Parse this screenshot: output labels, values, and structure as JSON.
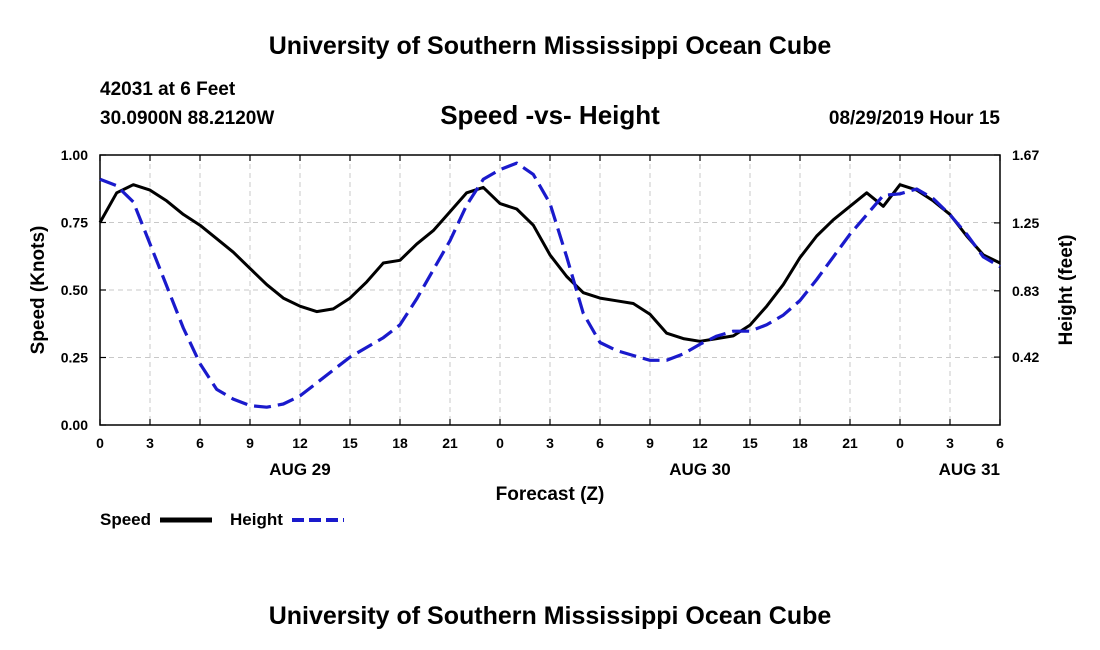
{
  "header": {
    "title": "University of Southern Mississippi Ocean Cube",
    "footer_title": "University of Southern Mississippi Ocean Cube",
    "station": "42031 at 6 Feet",
    "coords": "30.0900N 88.2120W",
    "timestamp": "08/29/2019 Hour 15"
  },
  "chart_data": {
    "type": "line",
    "title": "Speed -vs- Height",
    "xlabel": "Forecast (Z)",
    "ylabel": "Speed (Knots)",
    "y2label": "Height (feet)",
    "x_tick_labels": [
      "0",
      "3",
      "6",
      "9",
      "12",
      "15",
      "18",
      "21",
      "0",
      "3",
      "6",
      "9",
      "12",
      "15",
      "18",
      "21",
      "0",
      "3",
      "6"
    ],
    "date_labels": [
      {
        "label": "AUG 29",
        "hour": 12
      },
      {
        "label": "AUG 30",
        "hour": 36
      },
      {
        "label": "AUG 31",
        "hour": 60
      }
    ],
    "xlim": [
      0,
      54
    ],
    "ylim": [
      0,
      1
    ],
    "y_ticks": [
      "0.00",
      "0.25",
      "0.50",
      "0.75",
      "1.00"
    ],
    "y2lim": [
      0,
      1.67
    ],
    "y2_ticks": [
      "0.42",
      "0.83",
      "1.25",
      "1.67"
    ],
    "y2_tick_values": [
      0.42,
      0.83,
      1.25,
      1.67
    ],
    "grid": true,
    "series": [
      {
        "name": "Speed",
        "axis": "left",
        "color": "#000000",
        "style": "solid",
        "x": [
          0,
          1,
          2,
          3,
          4,
          5,
          6,
          7,
          8,
          9,
          10,
          11,
          12,
          13,
          14,
          15,
          16,
          17,
          18,
          19,
          20,
          21,
          22,
          23,
          24,
          25,
          26,
          27,
          28,
          29,
          30,
          31,
          32,
          33,
          34,
          35,
          36,
          37,
          38,
          39,
          40,
          41,
          42,
          43,
          44,
          45,
          46,
          47,
          48,
          49,
          50,
          51,
          52,
          53,
          54
        ],
        "values": [
          0.75,
          0.86,
          0.89,
          0.87,
          0.83,
          0.78,
          0.74,
          0.69,
          0.64,
          0.58,
          0.52,
          0.47,
          0.44,
          0.42,
          0.43,
          0.47,
          0.53,
          0.6,
          0.61,
          0.67,
          0.72,
          0.79,
          0.86,
          0.88,
          0.82,
          0.8,
          0.74,
          0.63,
          0.55,
          0.49,
          0.47,
          0.46,
          0.45,
          0.41,
          0.34,
          0.32,
          0.31,
          0.32,
          0.33,
          0.37,
          0.44,
          0.52,
          0.62,
          0.7,
          0.76,
          0.81,
          0.86,
          0.81,
          0.89,
          0.87,
          0.83,
          0.78,
          0.7,
          0.63,
          0.6
        ]
      },
      {
        "name": "Height",
        "axis": "right",
        "color": "#1a1acc",
        "style": "dashed",
        "x": [
          0,
          1,
          2,
          3,
          4,
          5,
          6,
          7,
          8,
          9,
          10,
          11,
          12,
          13,
          14,
          15,
          16,
          17,
          18,
          19,
          20,
          21,
          22,
          23,
          24,
          25,
          26,
          27,
          28,
          29,
          30,
          31,
          32,
          33,
          34,
          35,
          36,
          37,
          38,
          39,
          40,
          41,
          42,
          43,
          44,
          45,
          46,
          47,
          48,
          49,
          50,
          51,
          52,
          53,
          54
        ],
        "values": [
          1.52,
          1.48,
          1.38,
          1.12,
          0.86,
          0.6,
          0.38,
          0.22,
          0.16,
          0.12,
          0.11,
          0.13,
          0.18,
          0.26,
          0.34,
          0.42,
          0.48,
          0.54,
          0.62,
          0.78,
          0.96,
          1.14,
          1.36,
          1.52,
          1.58,
          1.62,
          1.55,
          1.37,
          1.04,
          0.69,
          0.51,
          0.46,
          0.43,
          0.4,
          0.4,
          0.44,
          0.5,
          0.55,
          0.58,
          0.58,
          0.62,
          0.68,
          0.77,
          0.9,
          1.04,
          1.18,
          1.3,
          1.42,
          1.43,
          1.46,
          1.4,
          1.3,
          1.18,
          1.04,
          0.98
        ]
      }
    ]
  }
}
